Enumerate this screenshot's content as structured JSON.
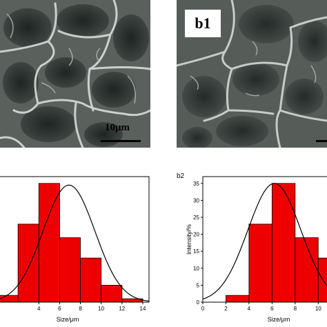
{
  "panels": {
    "sem_left": {
      "scale_label": "10μm"
    },
    "sem_right": {
      "label": "b1"
    }
  },
  "chart_data": [
    {
      "type": "bar",
      "tag": "",
      "x": [
        0,
        2,
        4,
        6,
        8,
        10,
        12
      ],
      "bin_width": 2,
      "values": [
        2,
        23,
        35,
        19,
        13,
        5,
        1
      ],
      "fit": {
        "type": "gaussian",
        "amplitude": 34.5,
        "mean": 6.9,
        "sigma": 2.5
      },
      "xlabel": "Size/μm",
      "ylabel": "",
      "xticks": [
        4,
        6,
        8,
        10,
        12,
        14
      ],
      "xlim": [
        0,
        14.6
      ],
      "ylim": [
        0,
        37
      ],
      "bar_color": "#ee0000"
    },
    {
      "type": "bar",
      "tag": "b2",
      "x": [
        0,
        2,
        4,
        6,
        8,
        10
      ],
      "bin_width": 2,
      "values": [
        0,
        2,
        23,
        35,
        19,
        13
      ],
      "fit": {
        "type": "gaussian",
        "amplitude": 35,
        "mean": 6.2,
        "sigma": 2.3
      },
      "xlabel": "Size/μm",
      "ylabel": "Intensity/%",
      "xticks": [
        0,
        2,
        4,
        6,
        8,
        10
      ],
      "yticks": [
        0,
        5,
        10,
        15,
        20,
        25,
        30,
        35
      ],
      "xlim": [
        0,
        11
      ],
      "ylim": [
        0,
        37
      ],
      "bar_color": "#ee0000"
    }
  ]
}
